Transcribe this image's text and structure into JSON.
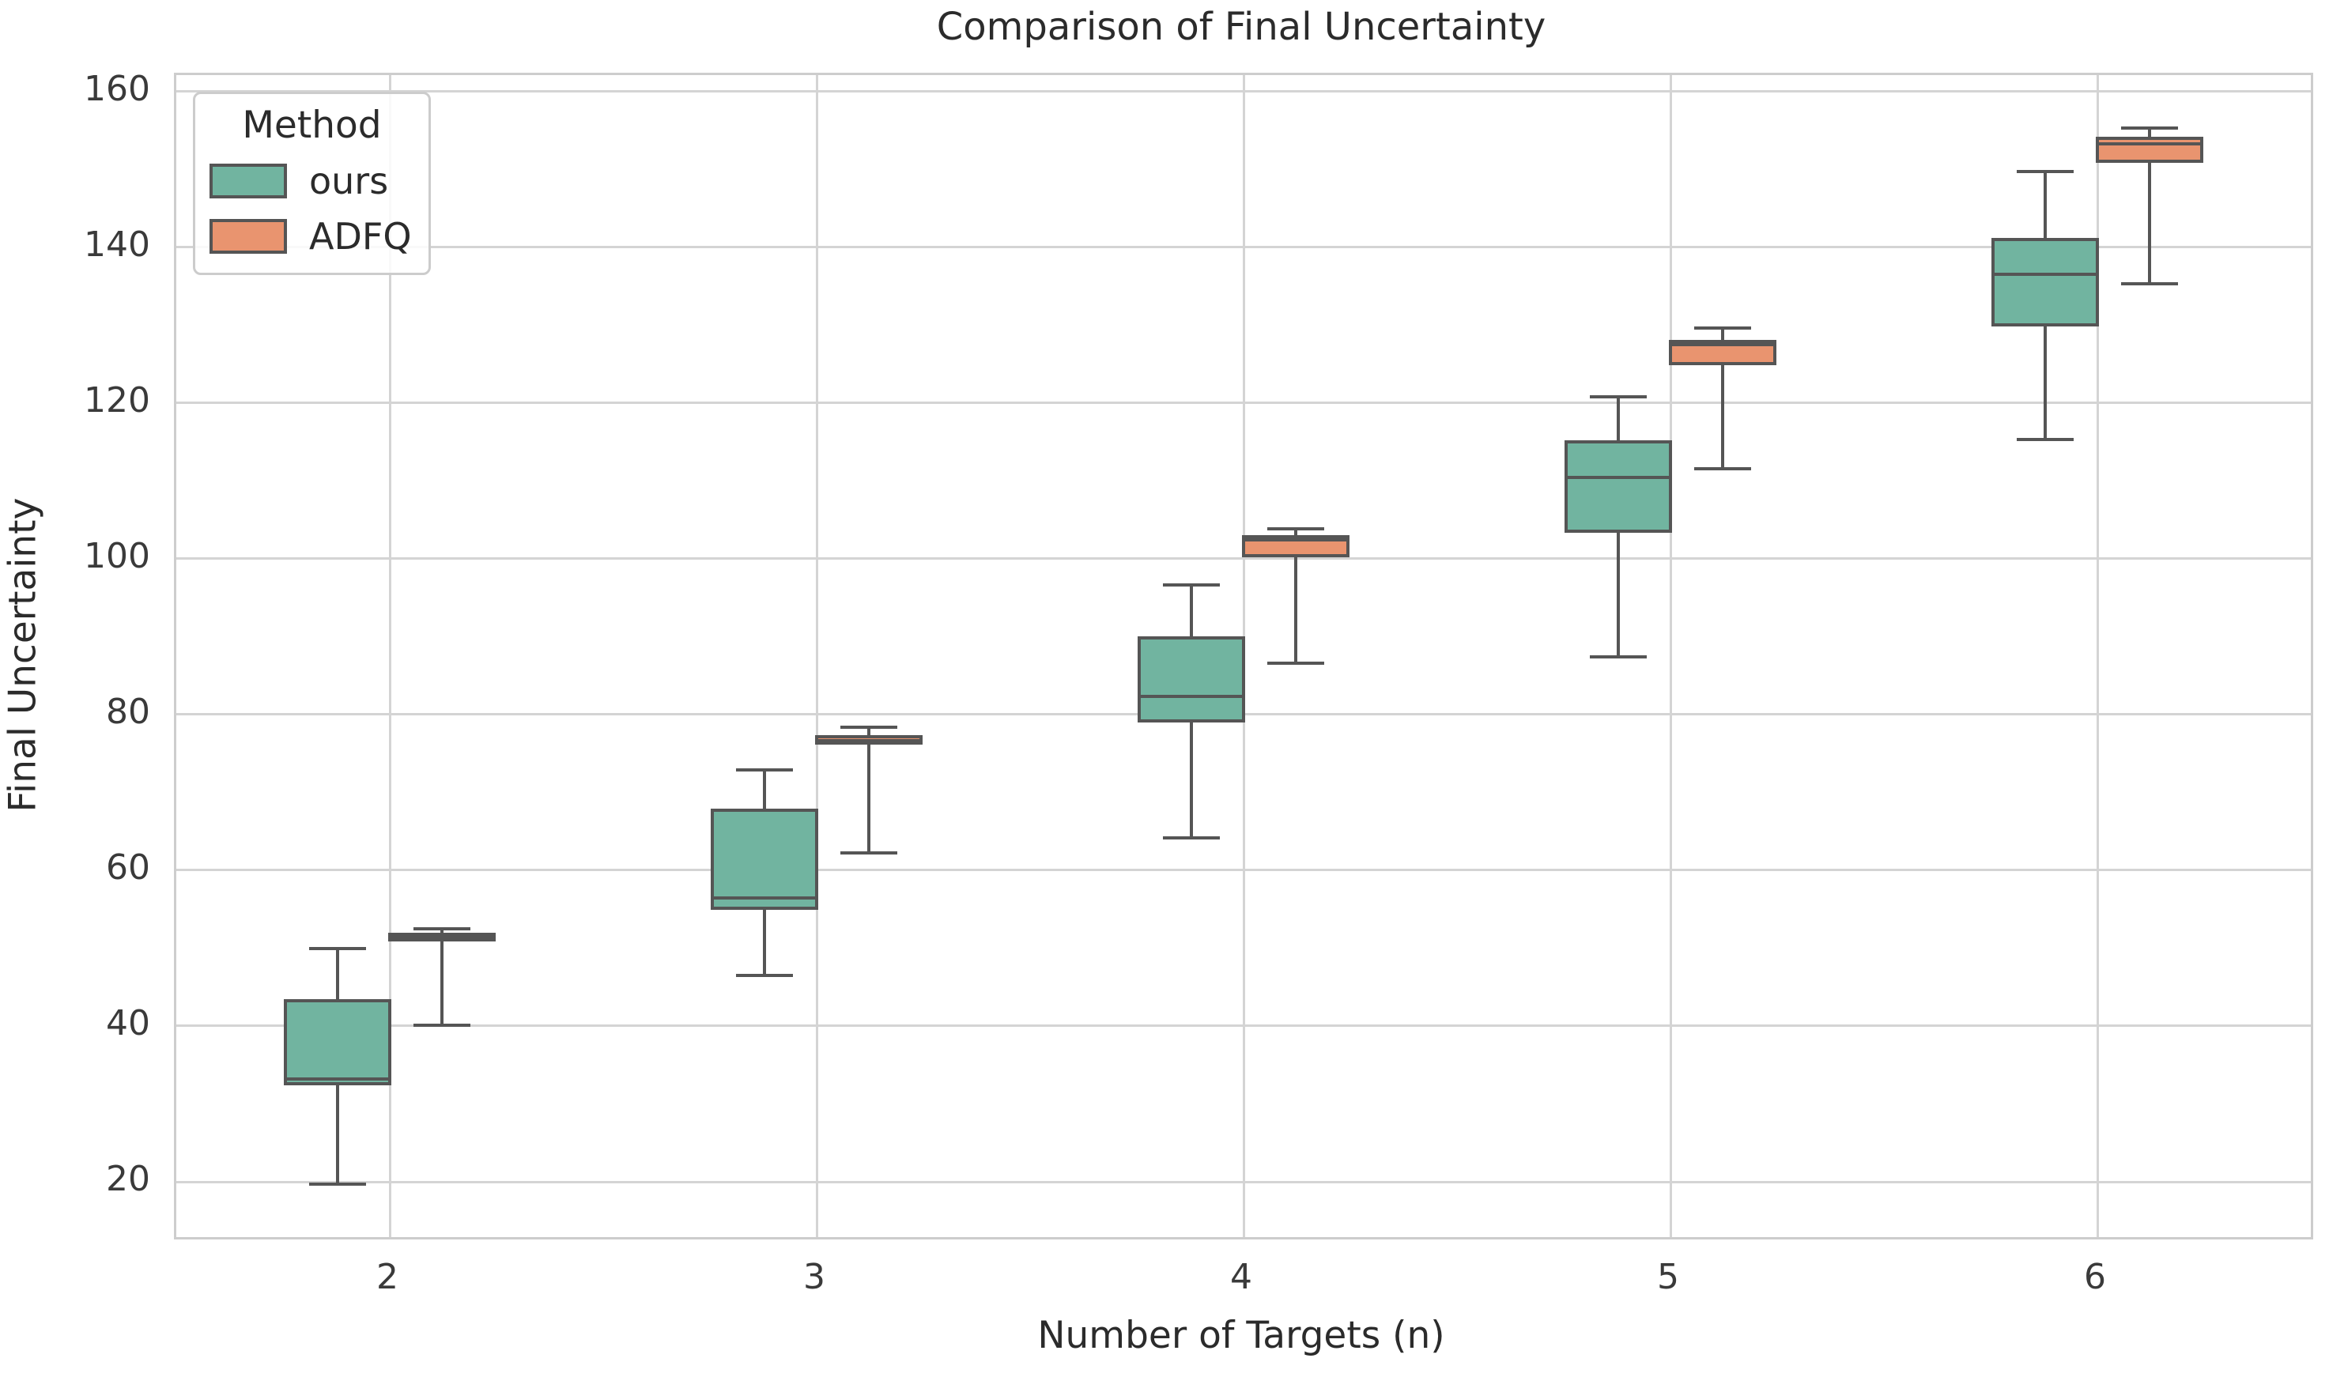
{
  "figure": {
    "title": "Comparison of Final Uncertainty",
    "xlabel": "Number of Targets (n)",
    "ylabel": "Final Uncertainty"
  },
  "legend": {
    "title": "Method",
    "items": [
      {
        "label": "ours",
        "color": "#71B4A0"
      },
      {
        "label": "ADFQ",
        "color": "#E9946F"
      }
    ]
  },
  "chart_data": {
    "type": "boxplot",
    "title": "Comparison of Final Uncertainty",
    "xlabel": "Number of Targets (n)",
    "ylabel": "Final Uncertainty",
    "categories": [
      "2",
      "3",
      "4",
      "5",
      "6"
    ],
    "yticks": [
      20,
      40,
      60,
      80,
      100,
      120,
      140,
      160
    ],
    "ylim": [
      12.9,
      162.1
    ],
    "grid": true,
    "legend_position": "upper left",
    "grid_color": "#d4d4d4",
    "edge_color": "#555555",
    "series": [
      {
        "name": "ours",
        "color": "#71B4A0",
        "boxes": [
          {
            "category": "2",
            "whislo": 19.7,
            "q1": 32.4,
            "med": 33.2,
            "q3": 43.5,
            "whishi": 49.9
          },
          {
            "category": "3",
            "whislo": 46.5,
            "q1": 54.9,
            "med": 56.4,
            "q3": 67.9,
            "whishi": 72.9
          },
          {
            "category": "4",
            "whislo": 64.2,
            "q1": 79.0,
            "med": 82.3,
            "q3": 90.0,
            "whishi": 96.6
          },
          {
            "category": "5",
            "whislo": 87.4,
            "q1": 103.3,
            "med": 110.4,
            "q3": 115.2,
            "whishi": 120.8
          },
          {
            "category": "6",
            "whislo": 115.3,
            "q1": 129.8,
            "med": 136.5,
            "q3": 141.2,
            "whishi": 149.7
          }
        ]
      },
      {
        "name": "ADFQ",
        "color": "#E9946F",
        "boxes": [
          {
            "category": "2",
            "whislo": 40.1,
            "q1": 50.9,
            "med": 51.4,
            "q3": 52.0,
            "whishi": 52.5
          },
          {
            "category": "3",
            "whislo": 62.2,
            "q1": 76.1,
            "med": 76.6,
            "q3": 77.4,
            "whishi": 78.4
          },
          {
            "category": "4",
            "whislo": 86.6,
            "q1": 100.2,
            "med": 102.4,
            "q3": 103.0,
            "whishi": 103.8
          },
          {
            "category": "5",
            "whislo": 111.6,
            "q1": 124.9,
            "med": 127.5,
            "q3": 128.1,
            "whishi": 129.6
          },
          {
            "category": "6",
            "whislo": 135.3,
            "q1": 150.8,
            "med": 153.3,
            "q3": 154.2,
            "whishi": 155.3
          }
        ]
      }
    ]
  }
}
